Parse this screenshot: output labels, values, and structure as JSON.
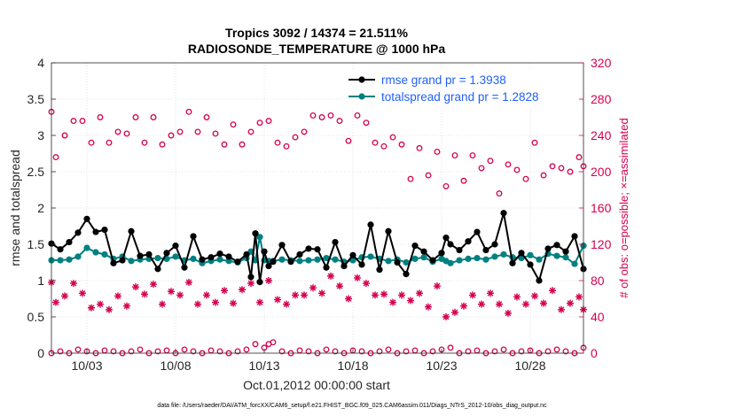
{
  "chart_data": {
    "type": "scatter",
    "title": [
      "Tropics 3092 / 14374 = 21.511%",
      "RADIOSONDE_TEMPERATURE @ 1000 hPa"
    ],
    "xlabel": "Oct.01,2012 00:00:00 start",
    "ylabel_left": "rmse and totalspread",
    "ylabel_right": "# of obs: o=possible; ×=assimilated",
    "footnote": "data file: /Users/raeder/DAI/ATM_forcXX/CAM6_setup/f.e21.FHIST_BGC.f09_025.CAM6assim.011/Diags_NTrS_2012-10/obs_diag_output.nc",
    "x_tick_labels": [
      "10/03",
      "10/08",
      "10/13",
      "10/18",
      "10/23",
      "10/28"
    ],
    "x_ticks_day": [
      3,
      8,
      13,
      18,
      23,
      28
    ],
    "xlim_day": [
      1,
      31
    ],
    "ylim_left": [
      0,
      4
    ],
    "yticks_left": [
      0,
      0.5,
      1,
      1.5,
      2,
      2.5,
      3,
      3.5,
      4
    ],
    "ylim_right": [
      0,
      320
    ],
    "yticks_right": [
      0,
      40,
      80,
      120,
      160,
      200,
      240,
      280,
      320
    ],
    "grid": true,
    "legend_position": "top-right",
    "colors": {
      "rmse": "#000000",
      "totalspread": "#008080",
      "obs": "#d6004f",
      "legend_text": "#1f5fff"
    },
    "series": [
      {
        "name": "rmse grand pr = 1.3938",
        "axis": "left",
        "style": "line-dots",
        "day": [
          1.0,
          1.5,
          2.0,
          2.5,
          3.0,
          3.5,
          4.0,
          4.5,
          5.0,
          5.5,
          6.0,
          6.5,
          7.0,
          7.5,
          8.0,
          8.5,
          9.0,
          9.5,
          10.0,
          10.5,
          11.0,
          11.5,
          12.0,
          12.25,
          12.5,
          12.75,
          13.0,
          13.25,
          13.5,
          14.0,
          14.5,
          15.0,
          15.5,
          16.0,
          16.5,
          17.0,
          17.5,
          18.0,
          18.5,
          19.0,
          19.5,
          20.0,
          20.5,
          21.0,
          21.5,
          22.0,
          22.5,
          23.0,
          23.25,
          23.5,
          24.0,
          24.5,
          25.0,
          25.5,
          26.0,
          26.5,
          27.0,
          27.5,
          28.0,
          28.5,
          29.0,
          29.5,
          30.0,
          30.5,
          31.0
        ],
        "values": [
          1.51,
          1.43,
          1.53,
          1.66,
          1.85,
          1.67,
          1.7,
          1.24,
          1.28,
          1.68,
          1.34,
          1.36,
          1.16,
          1.38,
          1.48,
          1.18,
          1.61,
          1.29,
          1.32,
          1.37,
          1.33,
          1.26,
          1.36,
          1.05,
          1.65,
          0.98,
          1.4,
          1.2,
          1.26,
          1.49,
          1.26,
          1.36,
          1.44,
          1.43,
          1.18,
          1.53,
          1.2,
          1.35,
          1.22,
          1.77,
          1.15,
          1.68,
          1.25,
          1.09,
          1.48,
          1.4,
          1.28,
          1.38,
          1.59,
          1.5,
          1.42,
          1.54,
          1.67,
          1.42,
          1.5,
          1.93,
          1.24,
          1.38,
          1.22,
          1.0,
          1.44,
          1.49,
          1.4,
          1.61,
          1.16
        ]
      },
      {
        "name": "totalspread grand pr = 1.2828",
        "axis": "left",
        "style": "line-dots",
        "day": [
          1.0,
          1.5,
          2.0,
          2.5,
          3.0,
          3.5,
          4.0,
          4.5,
          5.0,
          5.5,
          6.0,
          6.5,
          7.0,
          7.5,
          8.0,
          8.5,
          9.0,
          9.5,
          10.0,
          10.5,
          11.0,
          11.5,
          12.0,
          12.25,
          12.5,
          12.75,
          13.0,
          13.25,
          13.5,
          14.0,
          14.5,
          15.0,
          15.5,
          16.0,
          16.5,
          17.0,
          17.5,
          18.0,
          18.5,
          19.0,
          19.5,
          20.0,
          20.5,
          21.0,
          21.5,
          22.0,
          22.5,
          23.0,
          23.25,
          23.5,
          24.0,
          24.5,
          25.0,
          25.5,
          26.0,
          26.5,
          27.0,
          27.5,
          28.0,
          28.5,
          29.0,
          29.5,
          30.0,
          30.5,
          31.0
        ],
        "values": [
          1.28,
          1.28,
          1.29,
          1.33,
          1.45,
          1.39,
          1.36,
          1.3,
          1.33,
          1.27,
          1.29,
          1.3,
          1.31,
          1.3,
          1.33,
          1.28,
          1.3,
          1.24,
          1.27,
          1.29,
          1.27,
          1.25,
          1.31,
          1.4,
          1.28,
          1.6,
          1.28,
          1.27,
          1.27,
          1.29,
          1.28,
          1.27,
          1.28,
          1.29,
          1.31,
          1.29,
          1.26,
          1.28,
          1.32,
          1.33,
          1.3,
          1.27,
          1.29,
          1.25,
          1.3,
          1.32,
          1.26,
          1.3,
          1.27,
          1.24,
          1.28,
          1.3,
          1.31,
          1.29,
          1.33,
          1.36,
          1.32,
          1.31,
          1.35,
          1.29,
          1.37,
          1.34,
          1.32,
          1.23,
          1.48
        ]
      },
      {
        "name": "obs possible",
        "axis": "right",
        "style": "open-circle",
        "day": [
          1.0,
          1.25,
          1.75,
          2.25,
          2.75,
          3.25,
          3.75,
          4.25,
          4.75,
          5.25,
          5.75,
          6.25,
          6.75,
          7.25,
          7.75,
          8.25,
          8.75,
          9.25,
          9.75,
          10.25,
          10.75,
          11.25,
          11.75,
          12.25,
          12.75,
          13.25,
          13.75,
          14.25,
          14.75,
          15.25,
          15.75,
          16.25,
          16.75,
          17.25,
          17.75,
          18.25,
          18.75,
          19.25,
          19.75,
          20.25,
          20.75,
          21.25,
          21.75,
          22.25,
          22.75,
          23.25,
          23.75,
          24.25,
          24.75,
          25.25,
          25.75,
          26.25,
          26.75,
          27.25,
          27.75,
          28.25,
          28.75,
          29.25,
          29.75,
          30.25,
          30.75,
          31.0
        ],
        "values": [
          266,
          216,
          240,
          256,
          256,
          232,
          260,
          232,
          244,
          242,
          260,
          232,
          260,
          230,
          240,
          244,
          266,
          244,
          260,
          242,
          230,
          252,
          230,
          244,
          254,
          256,
          232,
          228,
          238,
          244,
          262,
          260,
          262,
          256,
          234,
          262,
          254,
          232,
          228,
          238,
          230,
          192,
          226,
          196,
          222,
          184,
          218,
          190,
          218,
          204,
          212,
          176,
          208,
          202,
          192,
          232,
          196,
          206,
          204,
          200,
          216,
          206
        ]
      },
      {
        "name": "obs assimilated",
        "axis": "right",
        "style": "asterisk",
        "day": [
          1.0,
          1.25,
          1.75,
          2.25,
          2.75,
          3.25,
          3.75,
          4.25,
          4.75,
          5.25,
          5.75,
          6.25,
          6.75,
          7.25,
          7.75,
          8.25,
          8.75,
          9.25,
          9.75,
          10.25,
          10.75,
          11.25,
          11.75,
          12.25,
          12.75,
          13.25,
          13.75,
          14.25,
          14.75,
          15.25,
          15.75,
          16.25,
          16.75,
          17.25,
          17.75,
          18.25,
          18.75,
          19.25,
          19.75,
          20.25,
          20.75,
          21.25,
          21.75,
          22.25,
          22.75,
          23.25,
          23.75,
          24.25,
          24.75,
          25.25,
          25.75,
          26.25,
          26.75,
          27.25,
          27.75,
          28.25,
          28.75,
          29.25,
          29.75,
          30.25,
          30.75,
          31.0
        ],
        "values": [
          78,
          56,
          63,
          77,
          66,
          50,
          54,
          48,
          63,
          52,
          73,
          65,
          76,
          54,
          68,
          64,
          78,
          54,
          64,
          56,
          69,
          55,
          70,
          77,
          56,
          80,
          59,
          54,
          64,
          64,
          72,
          66,
          85,
          74,
          60,
          83,
          77,
          64,
          65,
          56,
          64,
          58,
          66,
          51,
          74,
          40,
          45,
          52,
          64,
          54,
          66,
          54,
          44,
          62,
          54,
          63,
          55,
          69,
          48,
          55,
          62,
          48
        ]
      },
      {
        "name": "obs near zero",
        "axis": "right",
        "style": "open-circle",
        "day": [
          1.0,
          1.5,
          2.0,
          2.5,
          3.0,
          3.5,
          4.0,
          4.5,
          5.0,
          5.5,
          6.0,
          6.5,
          7.0,
          7.5,
          8.0,
          8.5,
          9.0,
          9.5,
          10.0,
          10.5,
          11.0,
          11.5,
          12.0,
          12.5,
          13.0,
          13.25,
          13.5,
          14.0,
          14.5,
          15.0,
          15.5,
          16.0,
          16.5,
          17.0,
          17.5,
          18.0,
          18.5,
          19.0,
          19.5,
          20.0,
          20.5,
          21.0,
          21.5,
          22.0,
          22.5,
          23.0,
          23.5,
          24.0,
          24.5,
          25.0,
          25.5,
          26.0,
          26.5,
          27.0,
          27.5,
          28.0,
          28.5,
          29.0,
          29.5,
          30.0,
          30.5,
          31.0
        ],
        "values": [
          0,
          2,
          0,
          4,
          2,
          0,
          3,
          2,
          0,
          2,
          4,
          0,
          2,
          3,
          0,
          4,
          2,
          0,
          3,
          2,
          0,
          2,
          4,
          10,
          6,
          10,
          12,
          2,
          0,
          3,
          2,
          0,
          4,
          2,
          0,
          3,
          2,
          0,
          2,
          4,
          0,
          2,
          3,
          0,
          2,
          4,
          6,
          0,
          2,
          3,
          0,
          2,
          4,
          0,
          2,
          3,
          0,
          2,
          4,
          2,
          0,
          6
        ]
      }
    ]
  }
}
